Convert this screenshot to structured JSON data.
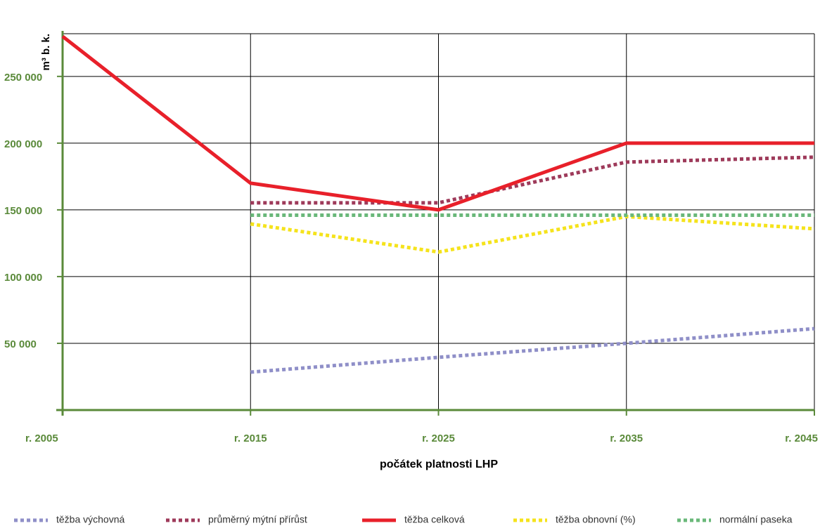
{
  "chart_data": {
    "type": "line",
    "y_label": "m³ b. k.",
    "x_label": "počátek platnosti LHP",
    "categories": [
      "r. 2005",
      "r. 2015",
      "r. 2025",
      "r. 2035",
      "r. 2045"
    ],
    "ylim": [
      0,
      282000
    ],
    "yticks": [
      {
        "value": 50000,
        "label": "50 000"
      },
      {
        "value": 100000,
        "label": "100 000"
      },
      {
        "value": 150000,
        "label": "150 000"
      },
      {
        "value": 200000,
        "label": "200 000"
      },
      {
        "value": 250000,
        "label": "250 000"
      }
    ],
    "grid": true,
    "legend": "bottom",
    "series": [
      {
        "name": "těžba výchovná",
        "color": "#8f8fc8",
        "style": "dotted",
        "values": [
          null,
          28400,
          39500,
          50000,
          61000
        ]
      },
      {
        "name": "průměrný mýtní přírůst",
        "color": "#9e3a5a",
        "style": "dotted",
        "values": [
          null,
          155300,
          155300,
          185800,
          189500
        ]
      },
      {
        "name": "těžba celková",
        "color": "#e8202a",
        "style": "solid",
        "values": [
          280000,
          170000,
          150000,
          200000,
          200000
        ]
      },
      {
        "name": "těžba obnovní (%)",
        "color": "#f5e31c",
        "style": "dotted",
        "values": [
          null,
          139500,
          118400,
          145000,
          135800
        ]
      },
      {
        "name": "normální paseka",
        "color": "#6ab87a",
        "style": "dotted",
        "values": [
          null,
          146000,
          146000,
          146000,
          146000
        ]
      }
    ]
  }
}
